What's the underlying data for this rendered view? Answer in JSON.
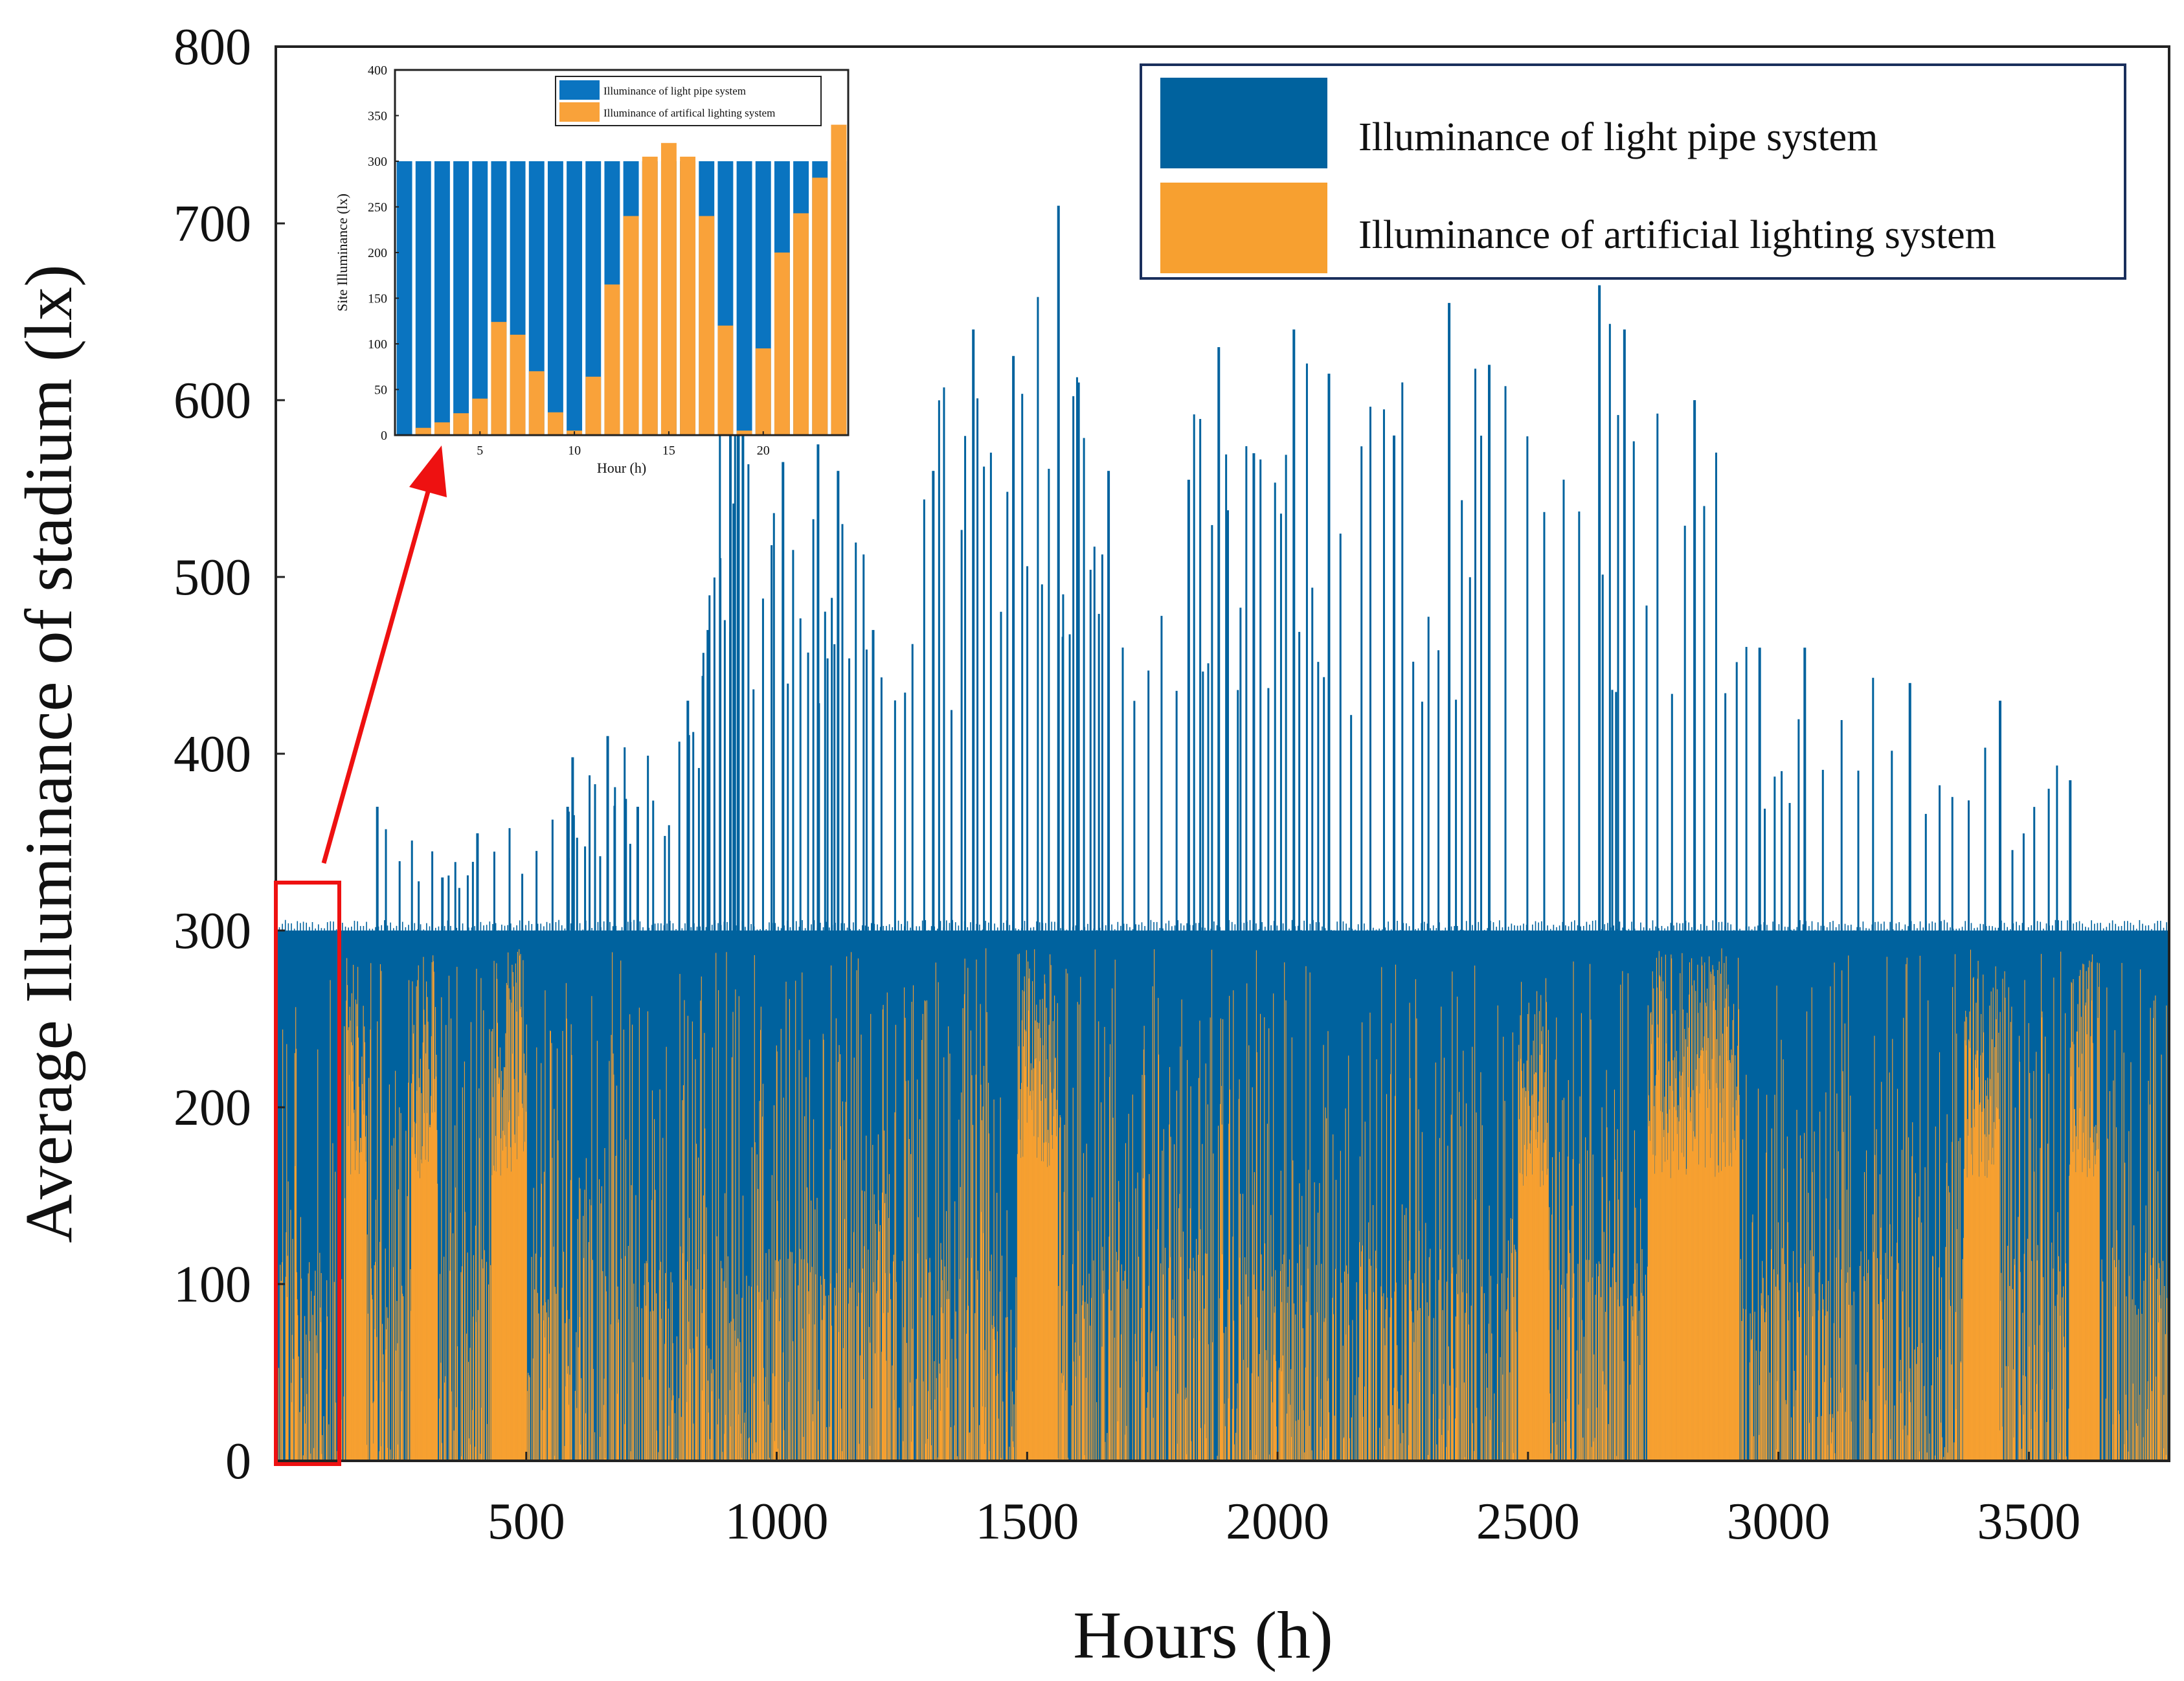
{
  "chart_data": [
    {
      "id": "main",
      "type": "bar",
      "stacked": "overlay",
      "title": "",
      "xlabel": "Hours (h)",
      "ylabel": "Average Illuminance of stadium (lx)",
      "xlim": [
        0,
        3780
      ],
      "ylim": [
        0,
        800
      ],
      "xticks": [
        500,
        1000,
        1500,
        2000,
        2500,
        3000,
        3500
      ],
      "yticks": [
        0,
        100,
        200,
        300,
        400,
        500,
        600,
        700,
        800
      ],
      "legend": {
        "position": "top-right",
        "entries": [
          {
            "label": "Illuminance of light pipe system",
            "color": "#00629e"
          },
          {
            "label": "Illuminance of artificial lighting system",
            "color": "#f7a030"
          }
        ]
      },
      "series_summary": {
        "light_pipe_baseline_lx": 300,
        "light_pipe_peak_lx": 710,
        "light_pipe_spikes": [
          {
            "hour": 200,
            "value": 370
          },
          {
            "hour": 330,
            "value": 330
          },
          {
            "hour": 400,
            "value": 355
          },
          {
            "hour": 580,
            "value": 370
          },
          {
            "hour": 590,
            "value": 398
          },
          {
            "hour": 660,
            "value": 410
          },
          {
            "hour": 720,
            "value": 370
          },
          {
            "hour": 820,
            "value": 430
          },
          {
            "hour": 860,
            "value": 470
          },
          {
            "hour": 905,
            "value": 700
          },
          {
            "hour": 930,
            "value": 680
          },
          {
            "hour": 1010,
            "value": 565
          },
          {
            "hour": 1080,
            "value": 575
          },
          {
            "hour": 1120,
            "value": 560
          },
          {
            "hour": 1190,
            "value": 470
          },
          {
            "hour": 1310,
            "value": 560
          },
          {
            "hour": 1390,
            "value": 640
          },
          {
            "hour": 1470,
            "value": 625
          },
          {
            "hour": 1560,
            "value": 710
          },
          {
            "hour": 1600,
            "value": 610
          },
          {
            "hour": 1660,
            "value": 560
          },
          {
            "hour": 1820,
            "value": 555
          },
          {
            "hour": 1880,
            "value": 630
          },
          {
            "hour": 1950,
            "value": 570
          },
          {
            "hour": 2030,
            "value": 640
          },
          {
            "hour": 2100,
            "value": 615
          },
          {
            "hour": 2230,
            "value": 580
          },
          {
            "hour": 2340,
            "value": 655
          },
          {
            "hour": 2420,
            "value": 620
          },
          {
            "hour": 2640,
            "value": 665
          },
          {
            "hour": 2690,
            "value": 640
          },
          {
            "hour": 2830,
            "value": 600
          },
          {
            "hour": 2960,
            "value": 460
          },
          {
            "hour": 3050,
            "value": 460
          },
          {
            "hour": 3260,
            "value": 440
          },
          {
            "hour": 3440,
            "value": 430
          },
          {
            "hour": 3580,
            "value": 385
          }
        ],
        "artificial_dense_periods": [
          {
            "start": 140,
            "end": 180,
            "peak": 290
          },
          {
            "start": 270,
            "end": 320,
            "peak": 290
          },
          {
            "start": 430,
            "end": 500,
            "peak": 290
          },
          {
            "start": 1480,
            "end": 1560,
            "peak": 290
          },
          {
            "start": 2480,
            "end": 2540,
            "peak": 275
          },
          {
            "start": 2740,
            "end": 2920,
            "peak": 290
          },
          {
            "start": 3370,
            "end": 3440,
            "peak": 290
          },
          {
            "start": 3580,
            "end": 3640,
            "peak": 290
          }
        ]
      }
    },
    {
      "id": "inset",
      "type": "bar",
      "stacked": "overlay",
      "xlabel": "Hour (h)",
      "ylabel": "Site Illuminance (lx)",
      "xlim": [
        0.5,
        24.5
      ],
      "ylim": [
        0,
        400
      ],
      "xticks": [
        5,
        10,
        15,
        20
      ],
      "yticks": [
        0,
        50,
        100,
        150,
        200,
        250,
        300,
        350,
        400
      ],
      "legend": {
        "position": "top-right",
        "entries": [
          {
            "label": "Illuminance of light pipe system",
            "color": "#0a74c0"
          },
          {
            "label": "Illuminance of artifical lighting system",
            "color": "#f9a23a"
          }
        ]
      },
      "categories": [
        1,
        2,
        3,
        4,
        5,
        6,
        7,
        8,
        9,
        10,
        11,
        12,
        13,
        14,
        15,
        16,
        17,
        18,
        19,
        20,
        21,
        22,
        23,
        24
      ],
      "series": [
        {
          "name": "Illuminance of light pipe system",
          "values": [
            300,
            300,
            300,
            300,
            300,
            300,
            300,
            300,
            300,
            300,
            300,
            300,
            300,
            300,
            300,
            300,
            300,
            300,
            300,
            300,
            300,
            300,
            300,
            300
          ]
        },
        {
          "name": "Illuminance of artifical lighting system",
          "values": [
            0,
            8,
            14,
            24,
            40,
            124,
            110,
            70,
            25,
            5,
            64,
            165,
            240,
            305,
            320,
            305,
            240,
            120,
            5,
            95,
            200,
            243,
            282,
            340
          ]
        }
      ]
    }
  ],
  "annotation": {
    "highlight_hours": [
      0,
      130
    ],
    "highlight_ylim": [
      0,
      330
    ],
    "color": "#ee1111"
  }
}
